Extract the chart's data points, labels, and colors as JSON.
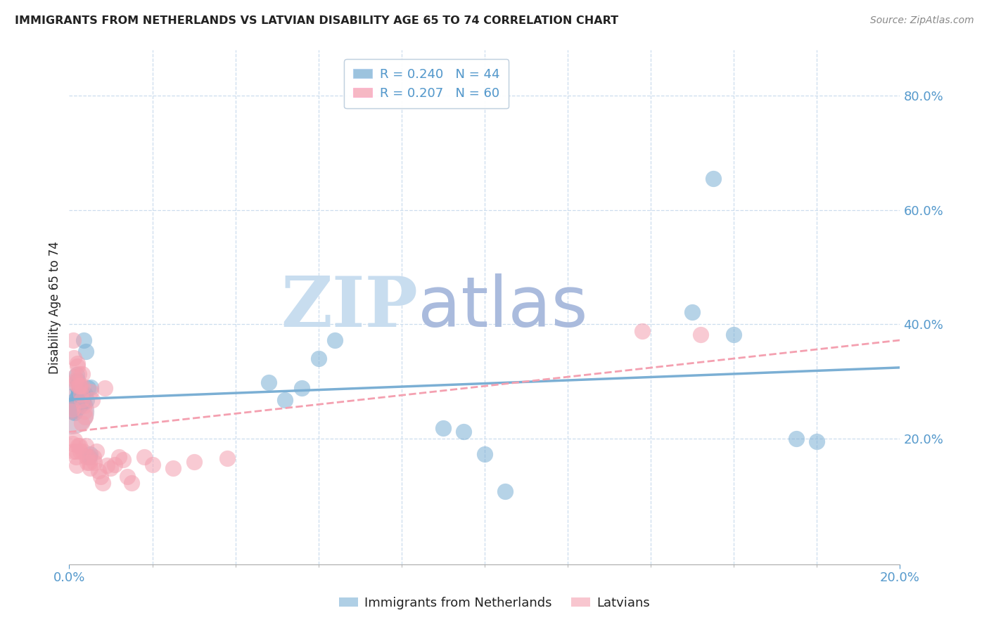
{
  "title": "IMMIGRANTS FROM NETHERLANDS VS LATVIAN DISABILITY AGE 65 TO 74 CORRELATION CHART",
  "source": "Source: ZipAtlas.com",
  "ylabel": "Disability Age 65 to 74",
  "legend_series": [
    {
      "label": "Immigrants from Netherlands",
      "R": 0.24,
      "N": 44,
      "color": "#7BAFD4"
    },
    {
      "label": "Latvians",
      "R": 0.207,
      "N": 60,
      "color": "#F4A0B0"
    }
  ],
  "xlim": [
    0.0,
    0.2
  ],
  "ylim": [
    -0.02,
    0.88
  ],
  "yticks_right": [
    0.2,
    0.4,
    0.6,
    0.8
  ],
  "watermark_zip": "ZIP",
  "watermark_atlas": "atlas",
  "title_color": "#222222",
  "axis_color": "#5599CC",
  "tick_color": "#5599CC",
  "grid_color": "#CCDDEE",
  "watermark_color_zip": "#C8DDEF",
  "watermark_color_atlas": "#AABBDD",
  "background_color": "#FFFFFF",
  "blue_scatter_x": [
    0.0008,
    0.001,
    0.0012,
    0.0013,
    0.0015,
    0.0015,
    0.0016,
    0.0018,
    0.0018,
    0.002,
    0.002,
    0.0021,
    0.0022,
    0.0023,
    0.0025,
    0.0025,
    0.0027,
    0.0028,
    0.003,
    0.003,
    0.0032,
    0.0033,
    0.0035,
    0.0038,
    0.004,
    0.0042,
    0.0045,
    0.0048,
    0.005,
    0.0052,
    0.048,
    0.052,
    0.056,
    0.06,
    0.064,
    0.09,
    0.095,
    0.1,
    0.105,
    0.15,
    0.155,
    0.16,
    0.175,
    0.18
  ],
  "blue_scatter_y": [
    0.248,
    0.26,
    0.252,
    0.246,
    0.268,
    0.258,
    0.25,
    0.312,
    0.292,
    0.272,
    0.302,
    0.278,
    0.262,
    0.282,
    0.268,
    0.257,
    0.282,
    0.268,
    0.278,
    0.263,
    0.278,
    0.263,
    0.372,
    0.278,
    0.352,
    0.268,
    0.288,
    0.168,
    0.173,
    0.29,
    0.298,
    0.268,
    0.288,
    0.34,
    0.372,
    0.218,
    0.212,
    0.173,
    0.108,
    0.422,
    0.655,
    0.382,
    0.2,
    0.195
  ],
  "pink_scatter_x": [
    0.0005,
    0.0007,
    0.0008,
    0.0009,
    0.001,
    0.0011,
    0.0012,
    0.0013,
    0.0014,
    0.0015,
    0.0016,
    0.0017,
    0.0018,
    0.0019,
    0.002,
    0.0021,
    0.0022,
    0.0023,
    0.0024,
    0.0025,
    0.0026,
    0.0027,
    0.0028,
    0.0029,
    0.003,
    0.0031,
    0.0032,
    0.0033,
    0.0035,
    0.0036,
    0.0038,
    0.004,
    0.0042,
    0.0044,
    0.0046,
    0.0048,
    0.005,
    0.0052,
    0.0055,
    0.0058,
    0.006,
    0.0065,
    0.007,
    0.0075,
    0.008,
    0.0085,
    0.009,
    0.01,
    0.011,
    0.012,
    0.013,
    0.014,
    0.015,
    0.018,
    0.02,
    0.025,
    0.03,
    0.038,
    0.138,
    0.152
  ],
  "pink_scatter_y": [
    0.248,
    0.252,
    0.192,
    0.178,
    0.372,
    0.342,
    0.308,
    0.198,
    0.302,
    0.297,
    0.178,
    0.168,
    0.153,
    0.332,
    0.327,
    0.292,
    0.188,
    0.313,
    0.292,
    0.188,
    0.178,
    0.292,
    0.278,
    0.268,
    0.227,
    0.313,
    0.292,
    0.178,
    0.258,
    0.248,
    0.238,
    0.188,
    0.168,
    0.158,
    0.168,
    0.158,
    0.148,
    0.283,
    0.268,
    0.168,
    0.158,
    0.178,
    0.143,
    0.133,
    0.123,
    0.288,
    0.153,
    0.148,
    0.155,
    0.168,
    0.163,
    0.133,
    0.123,
    0.168,
    0.155,
    0.148,
    0.16,
    0.165,
    0.388,
    0.382
  ]
}
